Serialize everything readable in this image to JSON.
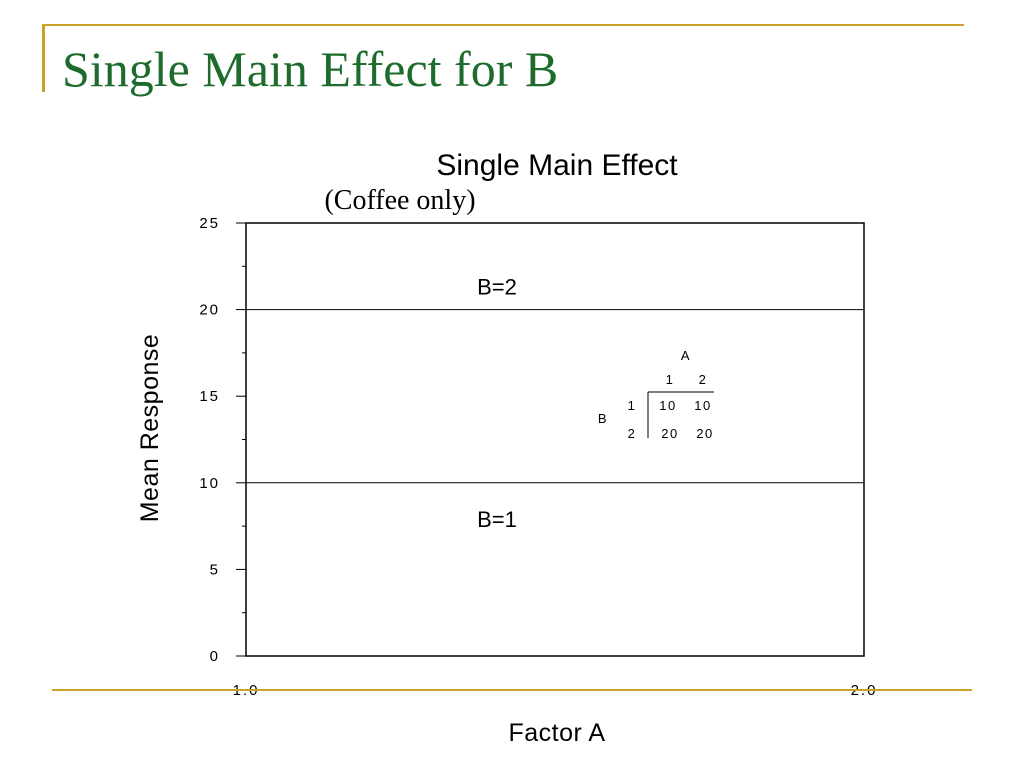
{
  "slide": {
    "title": "Single Main Effect for B",
    "colors": {
      "title": "#1e6b2e",
      "accent_rule": "#c9a227"
    }
  },
  "chart_data": {
    "type": "line",
    "title": "Single Main Effect",
    "subtitle": "(Coffee only)",
    "xlabel": "Factor A",
    "ylabel": "Mean Response",
    "xlim": [
      1.0,
      2.0
    ],
    "ylim": [
      0,
      25
    ],
    "x_ticks": [
      "1.0",
      "2.0"
    ],
    "y_ticks": [
      "0",
      "5",
      "10",
      "15",
      "20",
      "25"
    ],
    "x": [
      1.0,
      2.0
    ],
    "series": [
      {
        "name": "B=2",
        "values": [
          20,
          20
        ]
      },
      {
        "name": "B=1",
        "values": [
          10,
          10
        ]
      }
    ],
    "grid": false,
    "inset_table": {
      "col_factor": "A",
      "row_factor": "B",
      "col_levels": [
        "1",
        "2"
      ],
      "row_levels": [
        "1",
        "2"
      ],
      "cells": [
        [
          "10",
          "10"
        ],
        [
          "20",
          "20"
        ]
      ]
    }
  }
}
